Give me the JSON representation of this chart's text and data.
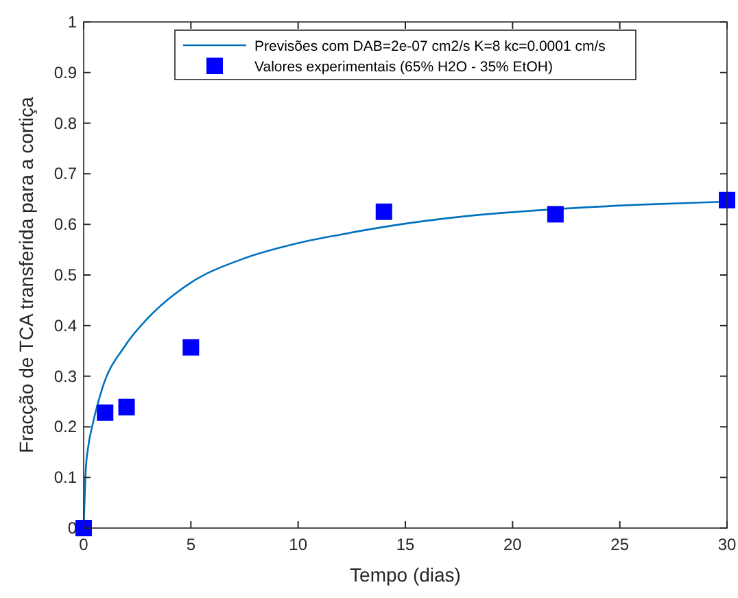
{
  "chart_data": {
    "type": "line",
    "xlabel": "Tempo (dias)",
    "ylabel": "Fracção de TCA transferida para a cortiça",
    "xlim": [
      0,
      30
    ],
    "ylim": [
      0,
      1
    ],
    "xticks": [
      0,
      5,
      10,
      15,
      20,
      25,
      30
    ],
    "yticks": [
      0,
      0.1,
      0.2,
      0.3,
      0.4,
      0.5,
      0.6,
      0.7,
      0.8,
      0.9,
      1
    ],
    "grid": false,
    "legend": "top",
    "series": [
      {
        "name": "Previsões com DAB=2e-07 cm2/s K=8 kc=0.0001 cm/s",
        "color": "#0072bd",
        "marker": "none",
        "x": [
          0,
          0.1,
          0.21,
          0.43,
          0.86,
          1.93,
          3,
          5,
          7.3,
          10,
          12,
          14,
          18,
          22,
          26,
          30
        ],
        "values": [
          0,
          0.116,
          0.16,
          0.207,
          0.275,
          0.36,
          0.415,
          0.485,
          0.53,
          0.563,
          0.58,
          0.595,
          0.617,
          0.63,
          0.639,
          0.645
        ]
      },
      {
        "name": "Valores experimentais (65% H2O - 35% EtOH)",
        "type": "scatter",
        "color": "#0000ff",
        "marker": "square",
        "x": [
          0,
          1,
          2,
          5,
          14,
          22,
          30
        ],
        "values": [
          0,
          0.228,
          0.239,
          0.357,
          0.625,
          0.62,
          0.648
        ]
      }
    ]
  }
}
